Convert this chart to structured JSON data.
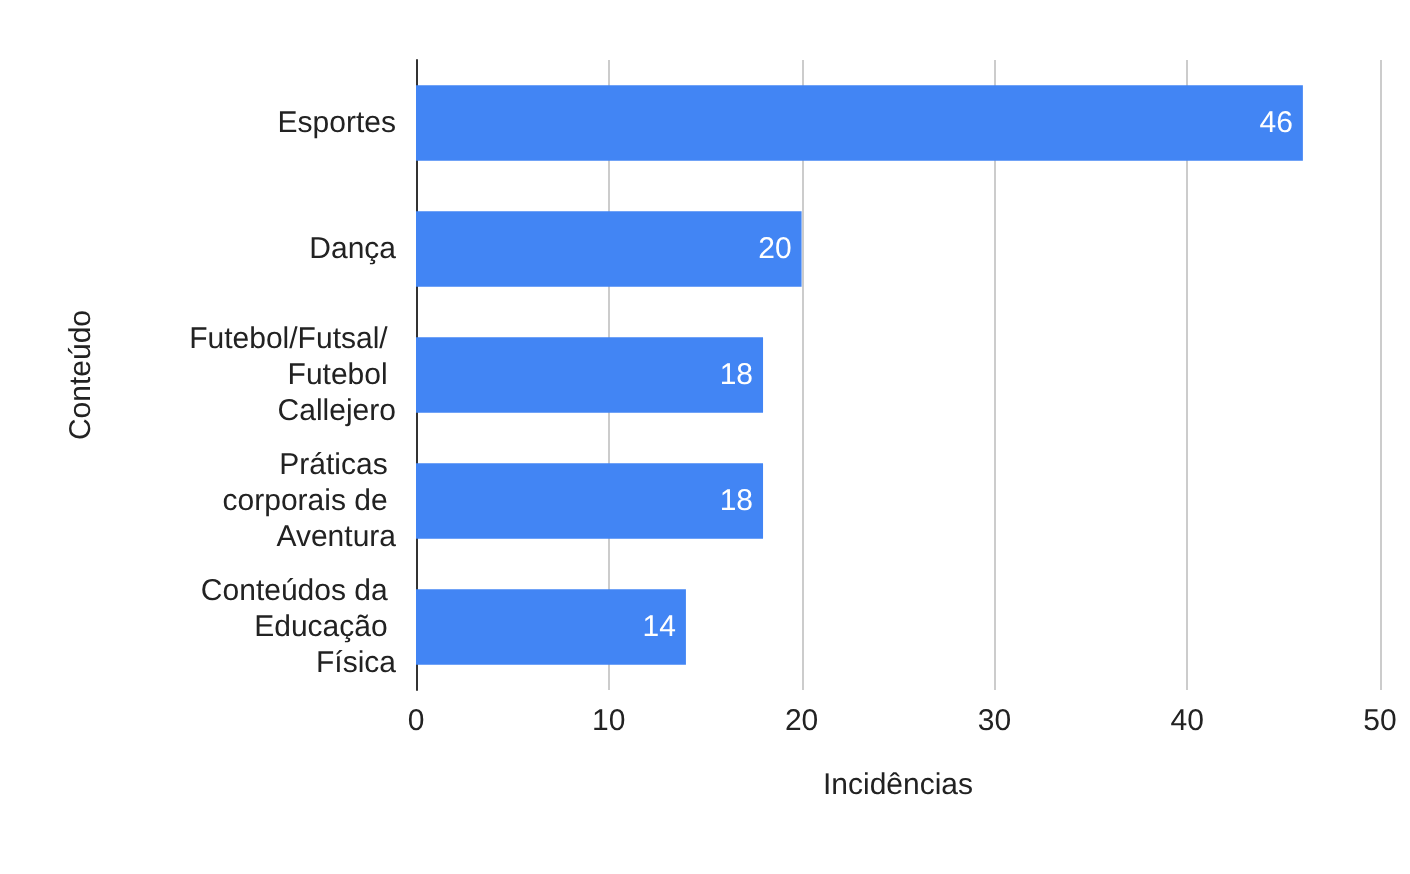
{
  "chart_data": {
    "type": "bar",
    "orientation": "horizontal",
    "xlabel": "Incidências",
    "ylabel": "Conteúdo",
    "categories": [
      "Esportes",
      "Dança",
      "Futebol/Futsal/ Futebol Callejero",
      "Práticas corporais de Aventura",
      "Conteúdos da Educação Física"
    ],
    "values": [
      46,
      20,
      18,
      18,
      14
    ],
    "color": "#4285f4",
    "data_labels": true,
    "xlim": [
      0,
      50
    ],
    "xticks": [
      0,
      10,
      20,
      30,
      40,
      50
    ],
    "grid": "x"
  }
}
